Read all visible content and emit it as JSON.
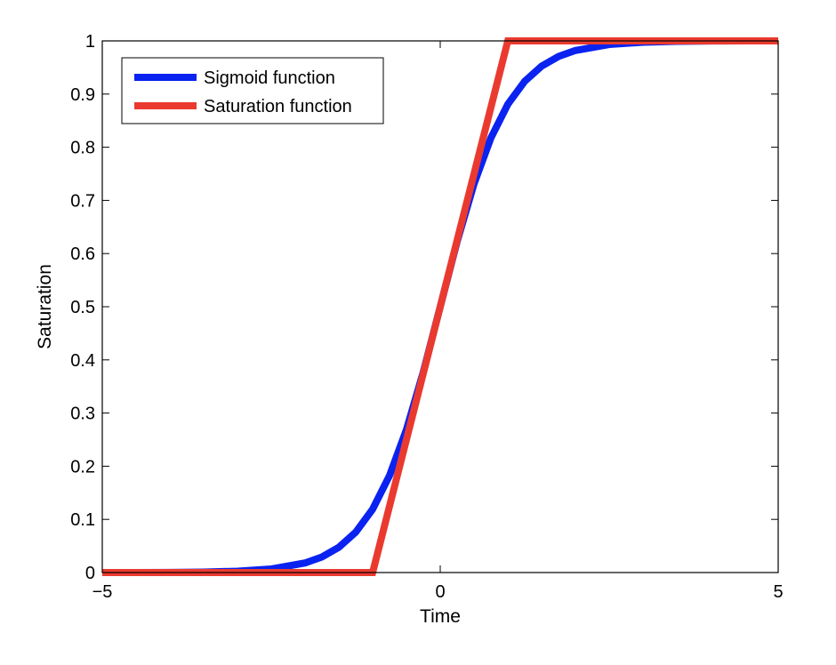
{
  "chart_data": {
    "type": "line",
    "title": "",
    "xlabel": "Time",
    "ylabel": "Saturation",
    "xlim": [
      -5,
      5
    ],
    "ylim": [
      0,
      1
    ],
    "xticks": [
      -5,
      0,
      5
    ],
    "xtick_labels": [
      "−5",
      "0",
      "5"
    ],
    "yticks": [
      0,
      0.1,
      0.2,
      0.3,
      0.4,
      0.5,
      0.6,
      0.7,
      0.8,
      0.9,
      1
    ],
    "ytick_labels": [
      "0",
      "0.1",
      "0.2",
      "0.3",
      "0.4",
      "0.5",
      "0.6",
      "0.7",
      "0.8",
      "0.9",
      "1"
    ],
    "grid": false,
    "legend_position": "top-left",
    "series": [
      {
        "name": "Sigmoid function",
        "color": "#0a23f0",
        "x": [
          -5,
          -4.5,
          -4,
          -3.5,
          -3,
          -2.5,
          -2,
          -1.75,
          -1.5,
          -1.25,
          -1,
          -0.75,
          -0.5,
          -0.25,
          0,
          0.25,
          0.5,
          0.75,
          1,
          1.25,
          1.5,
          1.75,
          2,
          2.5,
          3,
          3.5,
          4,
          4.5,
          5
        ],
        "y": [
          0.0,
          0.0001,
          0.0003,
          0.0009,
          0.0025,
          0.0067,
          0.018,
          0.0293,
          0.0474,
          0.0759,
          0.1192,
          0.1824,
          0.2689,
          0.3775,
          0.5,
          0.6225,
          0.7311,
          0.8176,
          0.8808,
          0.9241,
          0.9526,
          0.9707,
          0.982,
          0.9933,
          0.9975,
          0.9991,
          0.9997,
          0.9999,
          1.0
        ]
      },
      {
        "name": "Saturation function",
        "color": "#ea3a2f",
        "x": [
          -5,
          -1,
          1,
          5
        ],
        "y": [
          0,
          0,
          1,
          1
        ]
      }
    ]
  }
}
